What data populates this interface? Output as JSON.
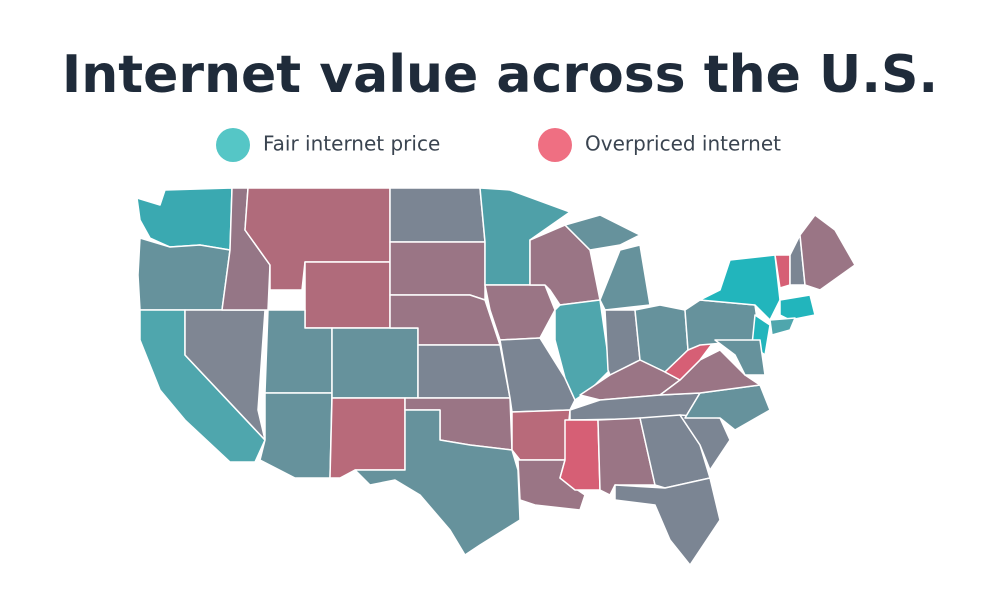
{
  "header": {
    "title": "Internet value across the U.S."
  },
  "legend": [
    {
      "label": "Fair internet price",
      "color": "#55c6c6"
    },
    {
      "label": "Overpriced internet",
      "color": "#ef6f82"
    }
  ]
}
